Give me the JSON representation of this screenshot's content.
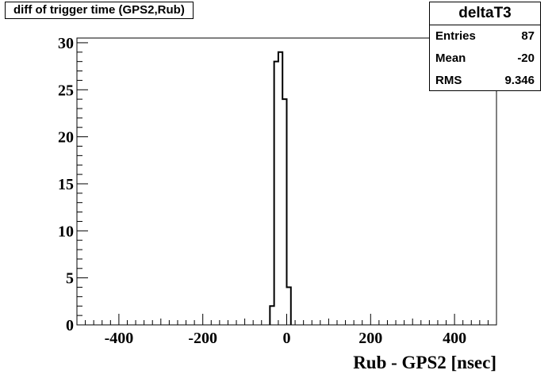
{
  "title": "diff of trigger time (GPS2,Rub)",
  "stats": {
    "name": "deltaT3",
    "rows": [
      {
        "label": "Entries",
        "value": "87"
      },
      {
        "label": "Mean",
        "value": "-20"
      },
      {
        "label": "RMS",
        "value": "9.346"
      }
    ]
  },
  "chart_data": {
    "type": "bar",
    "histogram_style": "step",
    "title": "diff of trigger time (GPS2,Rub)",
    "xlabel": "Rub - GPS2 [nsec]",
    "ylabel": "",
    "xlim": [
      -500,
      500
    ],
    "ylim": [
      0,
      30.5
    ],
    "xticks": [
      -400,
      -200,
      0,
      200,
      400
    ],
    "xtick_labels": [
      "-400",
      "-200",
      "0",
      "200",
      "400"
    ],
    "yticks": [
      0,
      5,
      10,
      15,
      20,
      25,
      30
    ],
    "ytick_labels": [
      "0",
      "5",
      "10",
      "15",
      "20",
      "25",
      "30"
    ],
    "bin_edges": [
      -40,
      -30,
      -20,
      -10,
      0,
      10
    ],
    "values": [
      2,
      28,
      29,
      24,
      4
    ],
    "grid": false,
    "line_color": "#000000"
  }
}
